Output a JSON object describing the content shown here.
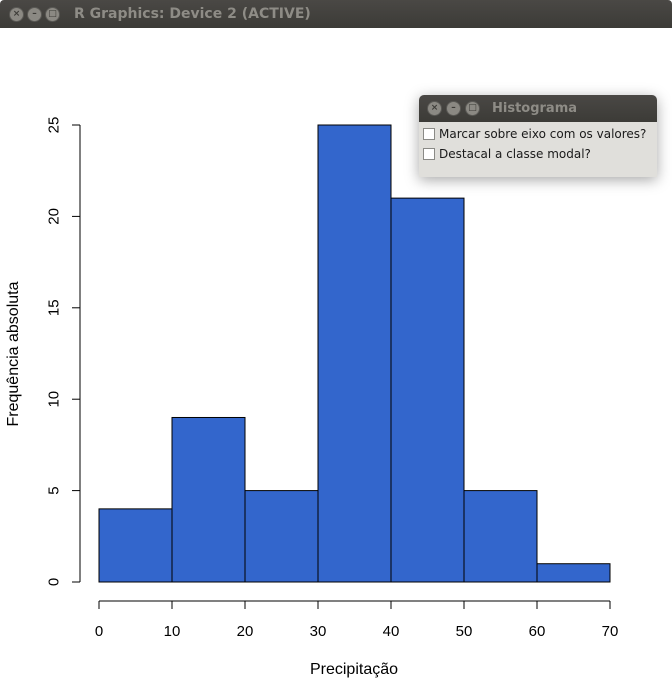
{
  "window": {
    "title": "R Graphics: Device 2 (ACTIVE)",
    "buttons": {
      "close": "×",
      "minimize": "–",
      "maximize": "□"
    }
  },
  "dialog": {
    "title": "Histograma",
    "buttons": {
      "close": "×",
      "minimize": "–",
      "maximize": "□"
    },
    "options": [
      {
        "label": "Marcar sobre eixo com os valores?",
        "checked": false
      },
      {
        "label": "Destacal a classe modal?",
        "checked": false
      }
    ]
  },
  "chart_data": {
    "type": "bar",
    "subtype": "histogram",
    "bins": [
      {
        "from": 0,
        "to": 10,
        "value": 4
      },
      {
        "from": 10,
        "to": 20,
        "value": 9
      },
      {
        "from": 20,
        "to": 30,
        "value": 5
      },
      {
        "from": 30,
        "to": 40,
        "value": 25
      },
      {
        "from": 40,
        "to": 50,
        "value": 21
      },
      {
        "from": 50,
        "to": 60,
        "value": 5
      },
      {
        "from": 60,
        "to": 70,
        "value": 1
      }
    ],
    "xlabel": "Precipitação",
    "ylabel": "Frequência absoluta",
    "xlim": [
      0,
      70
    ],
    "ylim": [
      0,
      25
    ],
    "xticks": [
      "0",
      "10",
      "20",
      "30",
      "40",
      "50",
      "60",
      "70"
    ],
    "yticks": [
      "0",
      "5",
      "10",
      "15",
      "20",
      "25"
    ],
    "bar_color": "#3366cc",
    "grid": false
  }
}
